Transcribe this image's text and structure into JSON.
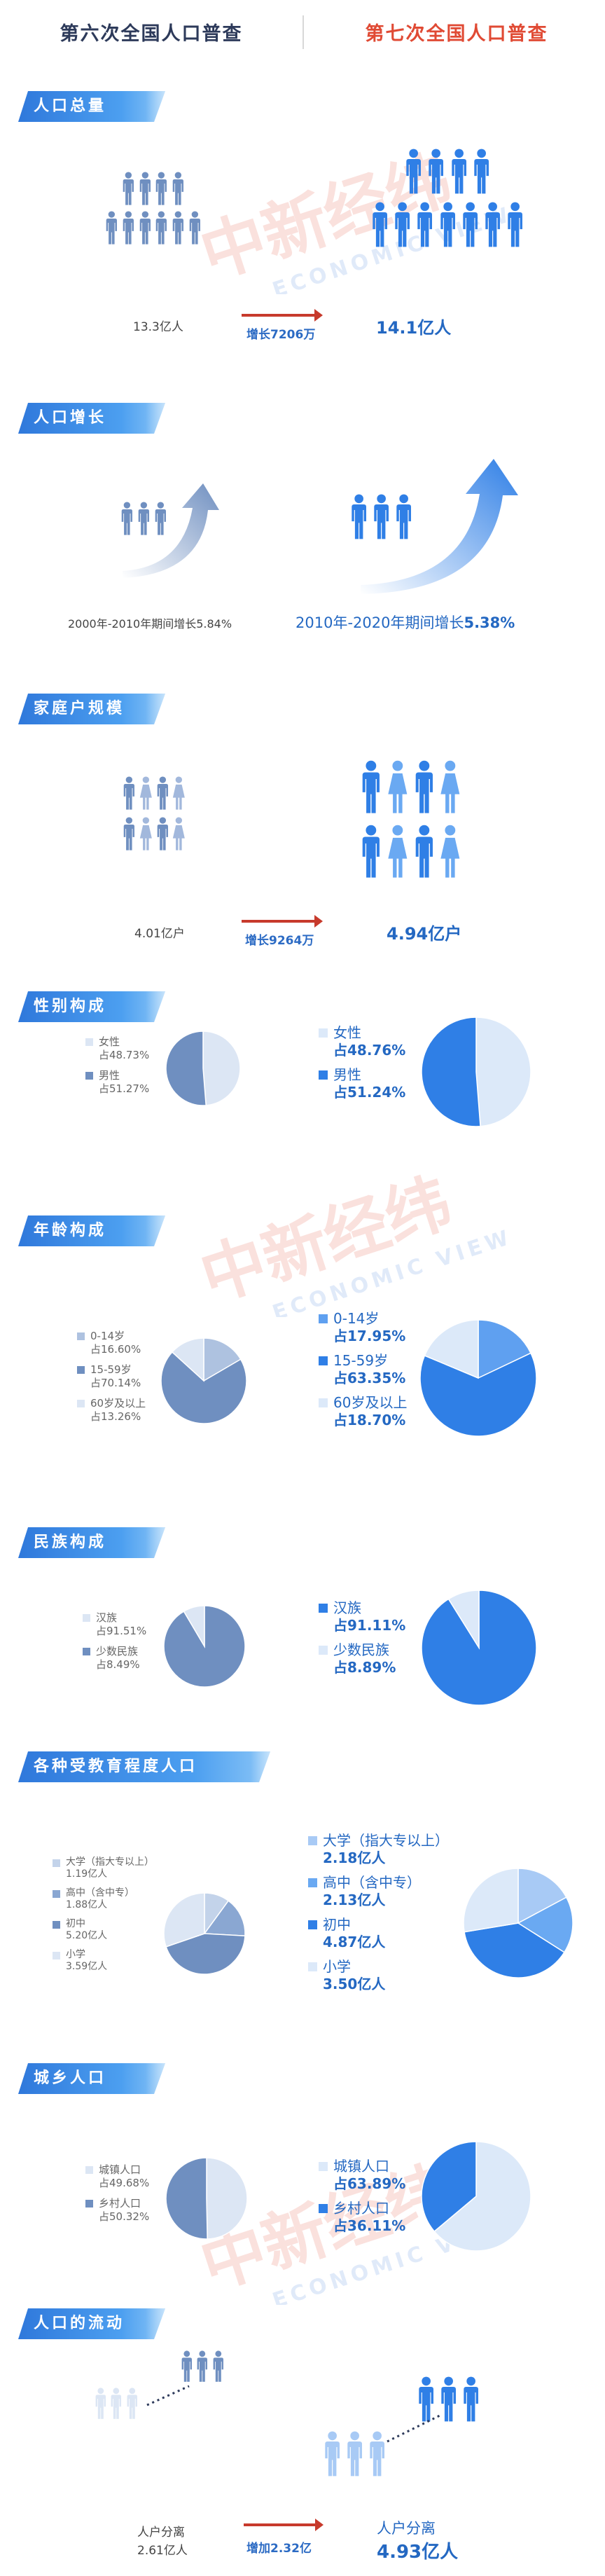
{
  "header": {
    "left_title": "第六次全国人口普查",
    "right_title": "第七次全国人口普查"
  },
  "colors": {
    "old": "#6f8fc0",
    "old_light": "#dce6f4",
    "new": "#2f7fe6",
    "new_light": "#dce9f9",
    "accent_red": "#c73a2c"
  },
  "watermark": {
    "brand": "中新经纬",
    "sub": "ECONOMIC VIEW"
  },
  "sections": {
    "population": {
      "tag": "人口总量",
      "old_value": "13.3亿人",
      "change": "增长7206万",
      "new_value": "14.1亿人"
    },
    "growth": {
      "tag": "人口增长",
      "old_text": "2000年-2010年期间增长5.84%",
      "new_prefix": "2010年-2020年期间增长",
      "new_rate": "5.38%"
    },
    "household": {
      "tag": "家庭户规模",
      "old_value": "4.01亿户",
      "change": "增长9264万",
      "new_value": "4.94亿户"
    },
    "sex": {
      "tag": "性别构成"
    },
    "age": {
      "tag": "年龄构成"
    },
    "ethnic": {
      "tag": "民族构成"
    },
    "education": {
      "tag": "各种受教育程度人口"
    },
    "urban": {
      "tag": "城乡人口"
    },
    "migration": {
      "tag": "人口的流动",
      "old_label": "人户分离",
      "old_value": "2.61亿人",
      "change": "增加2.32亿",
      "new_label": "人户分离",
      "new_value": "4.93亿人"
    }
  },
  "chart_data": [
    {
      "type": "pie",
      "title": "性别构成 第六次",
      "categories": [
        "女性",
        "男性"
      ],
      "values": [
        48.73,
        51.27
      ],
      "labels": [
        "占48.73%",
        "占51.27%"
      ]
    },
    {
      "type": "pie",
      "title": "性别构成 第七次",
      "categories": [
        "女性",
        "男性"
      ],
      "values": [
        48.76,
        51.24
      ],
      "labels": [
        "占48.76%",
        "占51.24%"
      ]
    },
    {
      "type": "pie",
      "title": "年龄构成 第六次",
      "categories": [
        "0-14岁",
        "15-59岁",
        "60岁及以上"
      ],
      "values": [
        16.6,
        70.14,
        13.26
      ],
      "labels": [
        "占16.60%",
        "占70.14%",
        "占13.26%"
      ]
    },
    {
      "type": "pie",
      "title": "年龄构成 第七次",
      "categories": [
        "0-14岁",
        "15-59岁",
        "60岁及以上"
      ],
      "values": [
        17.95,
        63.35,
        18.7
      ],
      "labels": [
        "占17.95%",
        "占63.35%",
        "占18.70%"
      ]
    },
    {
      "type": "pie",
      "title": "民族构成 第六次",
      "categories": [
        "汉族",
        "少数民族"
      ],
      "values": [
        91.51,
        8.49
      ],
      "labels": [
        "占91.51%",
        "占8.49%"
      ]
    },
    {
      "type": "pie",
      "title": "民族构成 第七次",
      "categories": [
        "汉族",
        "少数民族"
      ],
      "values": [
        91.11,
        8.89
      ],
      "labels": [
        "占91.11%",
        "占8.89%"
      ]
    },
    {
      "type": "pie",
      "title": "受教育程度 第六次",
      "categories": [
        "大学（指大专以上）",
        "高中（含中专）",
        "初中",
        "小学"
      ],
      "values": [
        1.19,
        1.88,
        5.2,
        3.59
      ],
      "labels": [
        "1.19亿人",
        "1.88亿人",
        "5.20亿人",
        "3.59亿人"
      ]
    },
    {
      "type": "pie",
      "title": "受教育程度 第七次",
      "categories": [
        "大学（指大专以上）",
        "高中（含中专）",
        "初中",
        "小学"
      ],
      "values": [
        2.18,
        2.13,
        4.87,
        3.5
      ],
      "labels": [
        "2.18亿人",
        "2.13亿人",
        "4.87亿人",
        "3.50亿人"
      ]
    },
    {
      "type": "pie",
      "title": "城乡人口 第六次",
      "categories": [
        "城镇人口",
        "乡村人口"
      ],
      "values": [
        49.68,
        50.32
      ],
      "labels": [
        "占49.68%",
        "占50.32%"
      ]
    },
    {
      "type": "pie",
      "title": "城乡人口 第七次",
      "categories": [
        "城镇人口",
        "乡村人口"
      ],
      "values": [
        63.89,
        36.11
      ],
      "labels": [
        "占63.89%",
        "占36.11%"
      ]
    }
  ]
}
